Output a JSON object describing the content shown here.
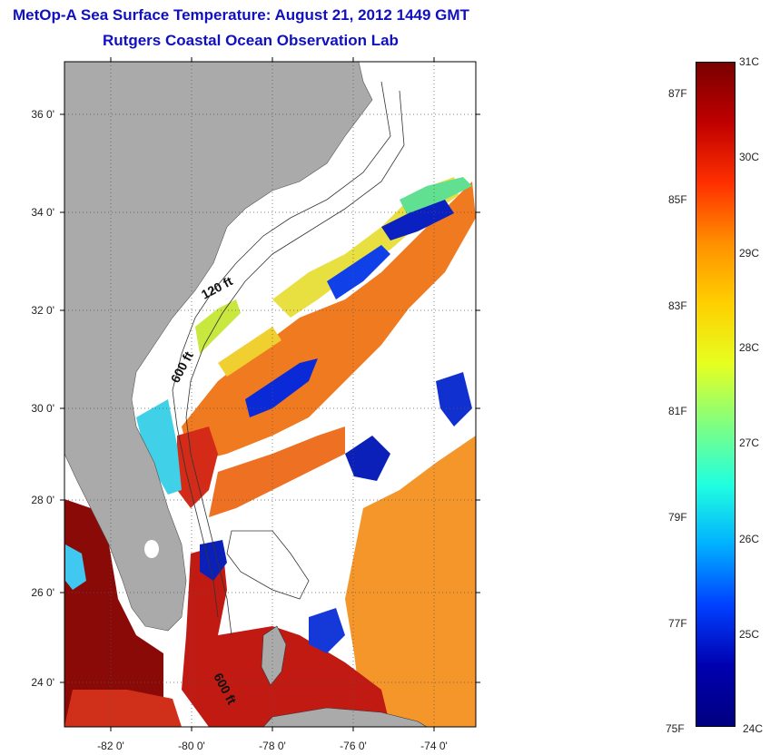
{
  "title": "MetOp-A Sea Surface Temperature:  August 21, 2012 1449 GMT",
  "subtitle": "Rutgers Coastal Ocean Observation Lab",
  "axes": {
    "longitude_ticks": [
      "-82 0'",
      "-80 0'",
      "-78 0'",
      "-76 0'",
      "-74 0'"
    ],
    "latitude_ticks": [
      "36 0'",
      "34 0'",
      "32 0'",
      "30 0'",
      "28 0'",
      "26 0'",
      "24 0'"
    ],
    "lon_range": [
      -83,
      -72.8
    ],
    "lat_range": [
      23,
      37
    ]
  },
  "isobaths": {
    "label_120": "120 ft",
    "label_600_north": "600 ft",
    "label_600_south": "600 ft"
  },
  "colorbar": {
    "celsius": [
      "31C",
      "30C",
      "29C",
      "28C",
      "27C",
      "26C",
      "25C",
      "24C"
    ],
    "fahrenheit": [
      "87F",
      "85F",
      "83F",
      "81F",
      "79F",
      "77F",
      "75F"
    ],
    "range_c": [
      24,
      31
    ],
    "colormap": [
      "#7a0000",
      "#c00000",
      "#ff3000",
      "#ff9000",
      "#ffd000",
      "#e6ff20",
      "#80ff80",
      "#20ffe0",
      "#00b0ff",
      "#0040ff",
      "#0000b0",
      "#000080"
    ]
  },
  "colors": {
    "land": "#aaaaaa",
    "cloud": "#ffffff",
    "title": "#1010c0"
  }
}
